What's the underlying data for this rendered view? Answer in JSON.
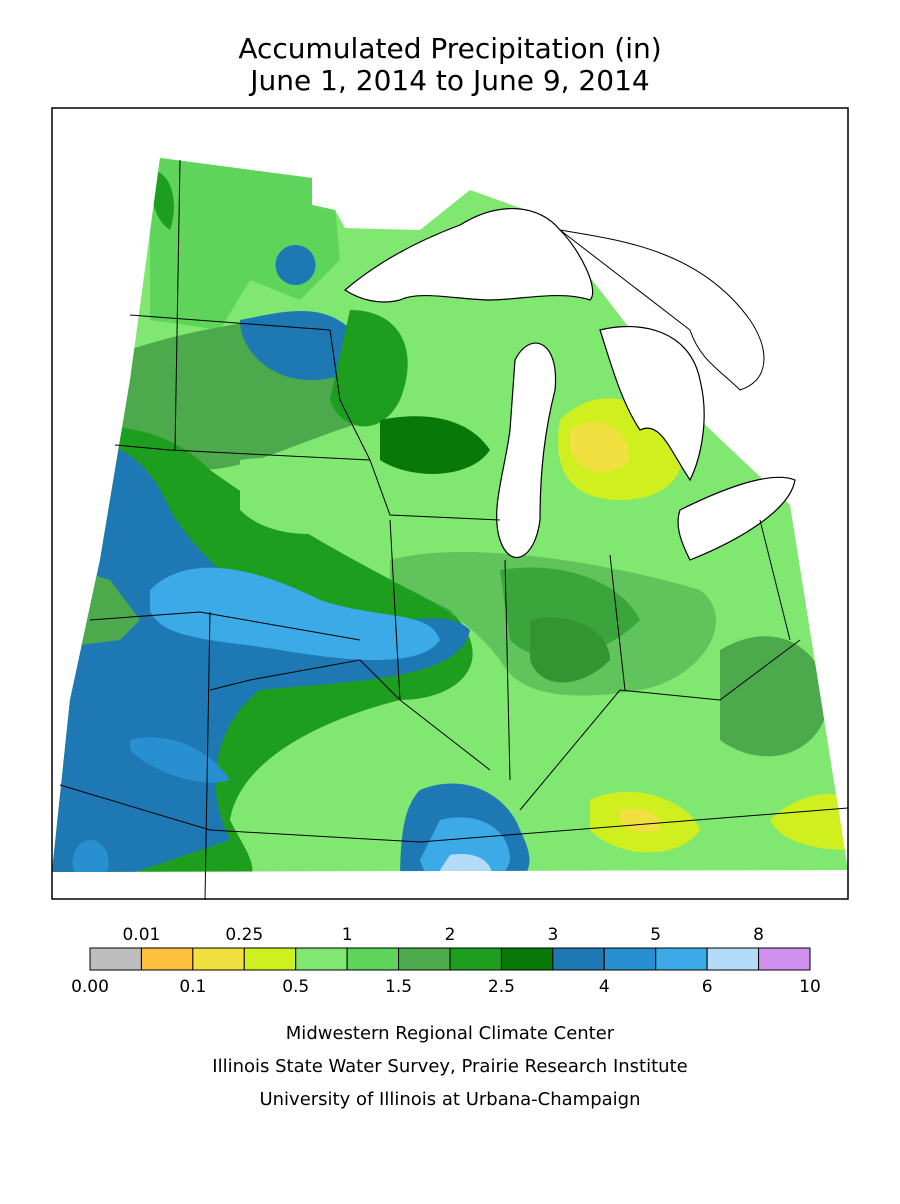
{
  "header": {
    "title": "Accumulated Precipitation (in)",
    "subtitle": "June 1, 2014 to June 9, 2014"
  },
  "legend": {
    "colors": [
      "#bebebe",
      "#ffbf3f",
      "#f0e040",
      "#cfef1f",
      "#80e870",
      "#5ed45a",
      "#4caa4c",
      "#1e9e1e",
      "#087808",
      "#1e78b4",
      "#2890d0",
      "#3caae6",
      "#b4dcf8",
      "#d090f0"
    ],
    "top_labels": [
      "0.01",
      "0.25",
      "1",
      "2",
      "3",
      "5",
      "8"
    ],
    "bottom_labels": [
      "0.00",
      "0.1",
      "0.5",
      "1.5",
      "2.5",
      "4",
      "6",
      "10"
    ]
  },
  "credits": [
    "Midwestern Regional Climate Center",
    "Illinois State Water Survey, Prairie Research Institute",
    "University of Illinois at Urbana-Champaign"
  ]
}
